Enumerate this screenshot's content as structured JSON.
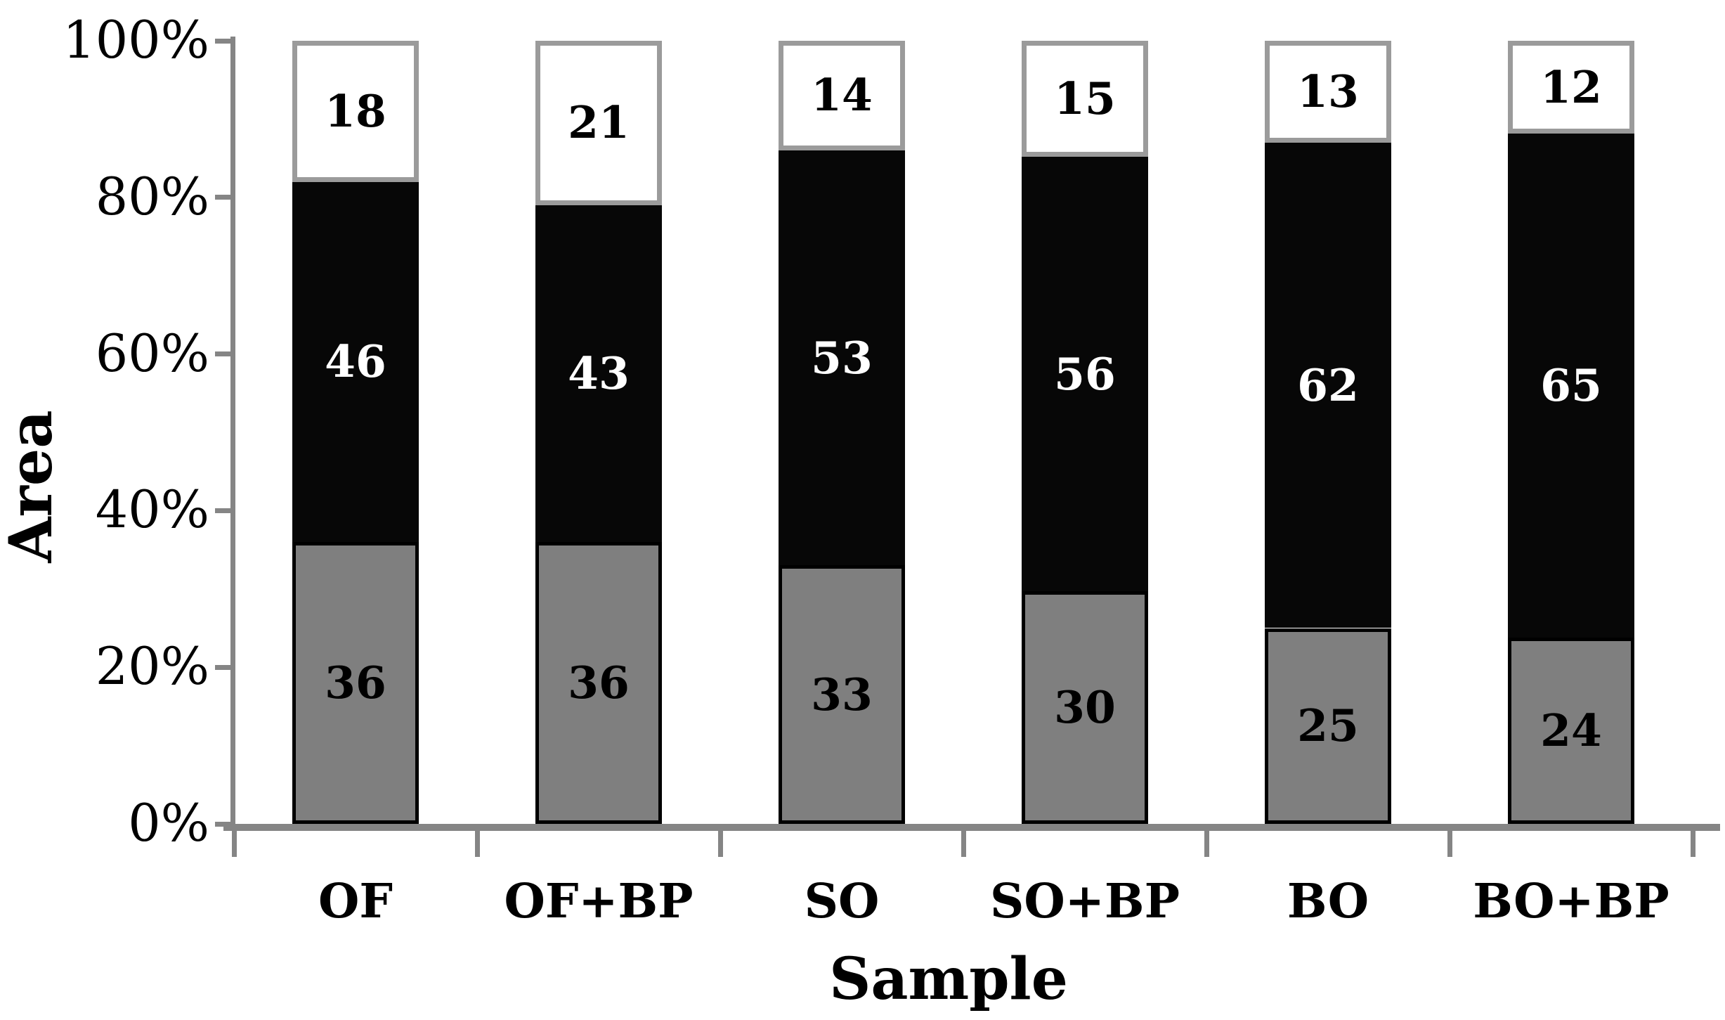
{
  "chart_data": {
    "type": "bar",
    "stacked": true,
    "stack_mode": "percent",
    "title": "",
    "xlabel": "Sample",
    "ylabel": "Area",
    "categories": [
      "OF",
      "OF+BP",
      "SO",
      "SO+BP",
      "BO",
      "BO+BP"
    ],
    "series": [
      {
        "name": "bottom-gray-segment",
        "fill": "#7f7f7f",
        "border": "#000000",
        "label_color": "#000000",
        "values": [
          36,
          36,
          33,
          30,
          25,
          24
        ]
      },
      {
        "name": "middle-black-segment",
        "fill": "#070707",
        "border": "#070707",
        "label_color": "#ffffff",
        "values": [
          46,
          43,
          53,
          56,
          62,
          65
        ]
      },
      {
        "name": "top-white-segment",
        "fill": "#ffffff",
        "border": "#9b9b9b",
        "label_color": "#000000",
        "values": [
          18,
          21,
          14,
          15,
          13,
          12
        ]
      }
    ],
    "y_ticks": [
      "0%",
      "20%",
      "40%",
      "60%",
      "80%",
      "100%"
    ],
    "ylim": [
      0,
      100
    ],
    "grid": "off",
    "legend": "none",
    "axis_color": "#858585"
  }
}
